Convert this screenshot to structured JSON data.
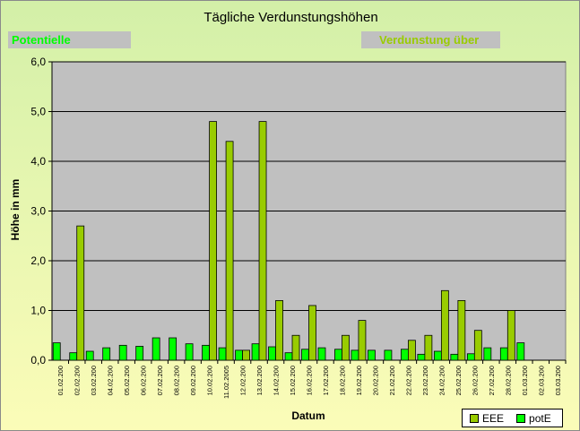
{
  "colors": {
    "eee": "#99cc00",
    "pote": "#00ff00",
    "plot_bg": "#c0c0c0",
    "callout_potential_text": "#00ff00",
    "callout_evap_text": "#99cc00"
  },
  "callouts": {
    "potential": "Potentielle",
    "evaporation": "Verdunstung über"
  },
  "chart_data": {
    "type": "bar",
    "title": "Tägliche Verdunstungshöhen",
    "xlabel": "Datum",
    "ylabel": "Höhe in mm",
    "ylim": [
      0,
      6
    ],
    "yticks": [
      "0,0",
      "1,0",
      "2,0",
      "3,0",
      "4,0",
      "5,0",
      "6,0"
    ],
    "grid": true,
    "legend_position": "bottom-right",
    "categories": [
      "01.02.200",
      "02.02.200",
      "03.02.200",
      "04.02.200",
      "05.02.200",
      "06.02.200",
      "07.02.200",
      "08.02.200",
      "09.02.200",
      "10.02.200",
      "11.02.2005",
      "12.02.200",
      "13.02.200",
      "14.02.200",
      "15.02.200",
      "16.02.200",
      "17.02.200",
      "18.02.200",
      "19.02.200",
      "20.02.200",
      "21.02.200",
      "22.02.200",
      "23.02.200",
      "24.02.200",
      "25.02.200",
      "26.02.200",
      "27.02.200",
      "28.02.200",
      "01.03.200",
      "02.03.200",
      "03.03.200"
    ],
    "series": [
      {
        "name": "EEE",
        "values": [
          0,
          2.7,
          0,
          0,
          0,
          0,
          0,
          0,
          0,
          4.8,
          4.4,
          0.2,
          4.8,
          1.2,
          0.5,
          1.1,
          0,
          0.5,
          0.8,
          0,
          0,
          0.4,
          0.5,
          1.4,
          1.2,
          0.6,
          0,
          1.0,
          0,
          0,
          0
        ]
      },
      {
        "name": "potE",
        "values": [
          0.35,
          0.15,
          0.18,
          0.25,
          0.3,
          0.28,
          0.45,
          0.45,
          0.33,
          0.3,
          0.25,
          0.2,
          0.33,
          0.27,
          0.15,
          0.22,
          0.25,
          0.22,
          0.2,
          0.2,
          0.2,
          0.22,
          0.12,
          0.18,
          0.12,
          0.13,
          0.25,
          0.25,
          0.35,
          0,
          0
        ]
      }
    ]
  }
}
